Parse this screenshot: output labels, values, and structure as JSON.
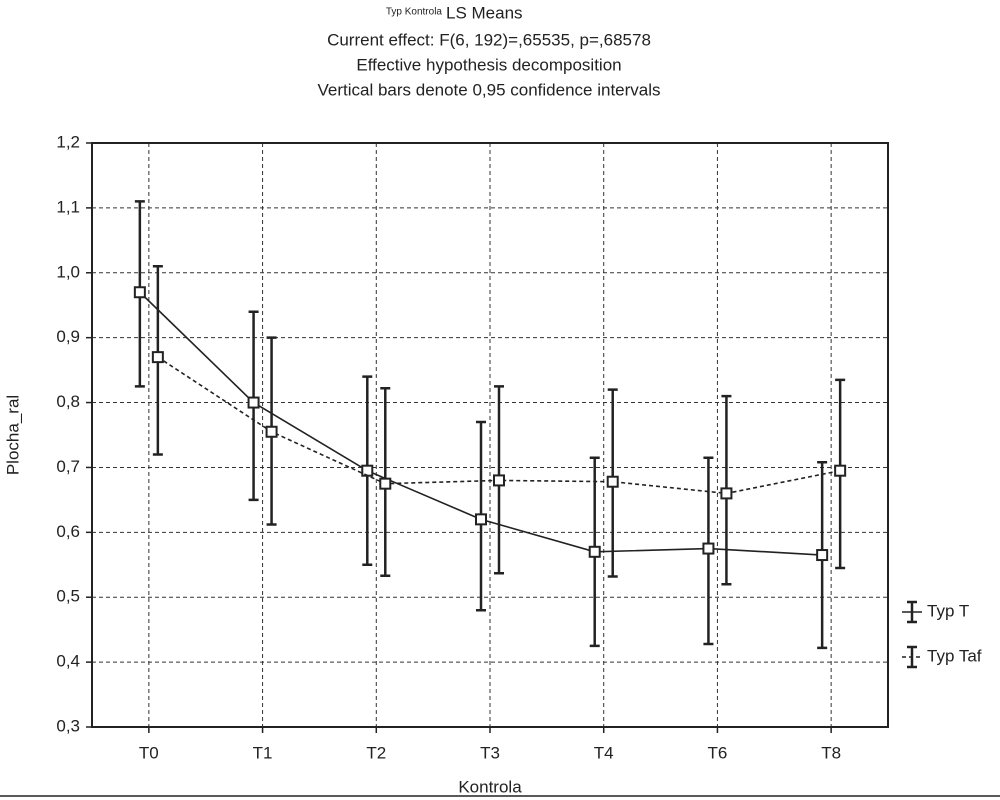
{
  "chart_data": {
    "type": "line-errorbar",
    "title_note": "Typ Kontrola",
    "title": "LS Means",
    "subtitles": [
      "Current effect: F(6, 192)=,65535, p=,68578",
      "Effective hypothesis decomposition",
      "Vertical bars denote 0,95 confidence intervals"
    ],
    "x_label": "Kontrola",
    "y_label": "Plocha_ral",
    "categories": [
      "T0",
      "T1",
      "T2",
      "T3",
      "T4",
      "T6",
      "T8"
    ],
    "series": [
      {
        "name": "Typ T",
        "color": "#222222",
        "line_style": "solid",
        "values": [
          0.97,
          0.8,
          0.695,
          0.62,
          0.57,
          0.575,
          0.565
        ],
        "lower": [
          0.825,
          0.65,
          0.55,
          0.48,
          0.425,
          0.428,
          0.422
        ],
        "upper": [
          1.11,
          0.94,
          0.84,
          0.77,
          0.715,
          0.715,
          0.708
        ]
      },
      {
        "name": "Typ Taf",
        "color": "#222222",
        "line_style": "dashed",
        "values": [
          0.87,
          0.755,
          0.675,
          0.68,
          0.678,
          0.66,
          0.695
        ],
        "lower": [
          0.72,
          0.612,
          0.533,
          0.537,
          0.532,
          0.52,
          0.545
        ],
        "upper": [
          1.01,
          0.9,
          0.822,
          0.825,
          0.82,
          0.81,
          0.835
        ]
      }
    ],
    "ylim": [
      0.3,
      1.2
    ],
    "yticks": [
      {
        "value": 0.3,
        "label": "0,3"
      },
      {
        "value": 0.4,
        "label": "0,4"
      },
      {
        "value": 0.5,
        "label": "0,5"
      },
      {
        "value": 0.6,
        "label": "0,6"
      },
      {
        "value": 0.7,
        "label": "0,7"
      },
      {
        "value": 0.8,
        "label": "0,8"
      },
      {
        "value": 0.9,
        "label": "0,9"
      },
      {
        "value": 1.0,
        "label": "1,0"
      },
      {
        "value": 1.1,
        "label": "1,1"
      },
      {
        "value": 1.2,
        "label": "1,2"
      }
    ],
    "grid": true,
    "legend": "right"
  }
}
